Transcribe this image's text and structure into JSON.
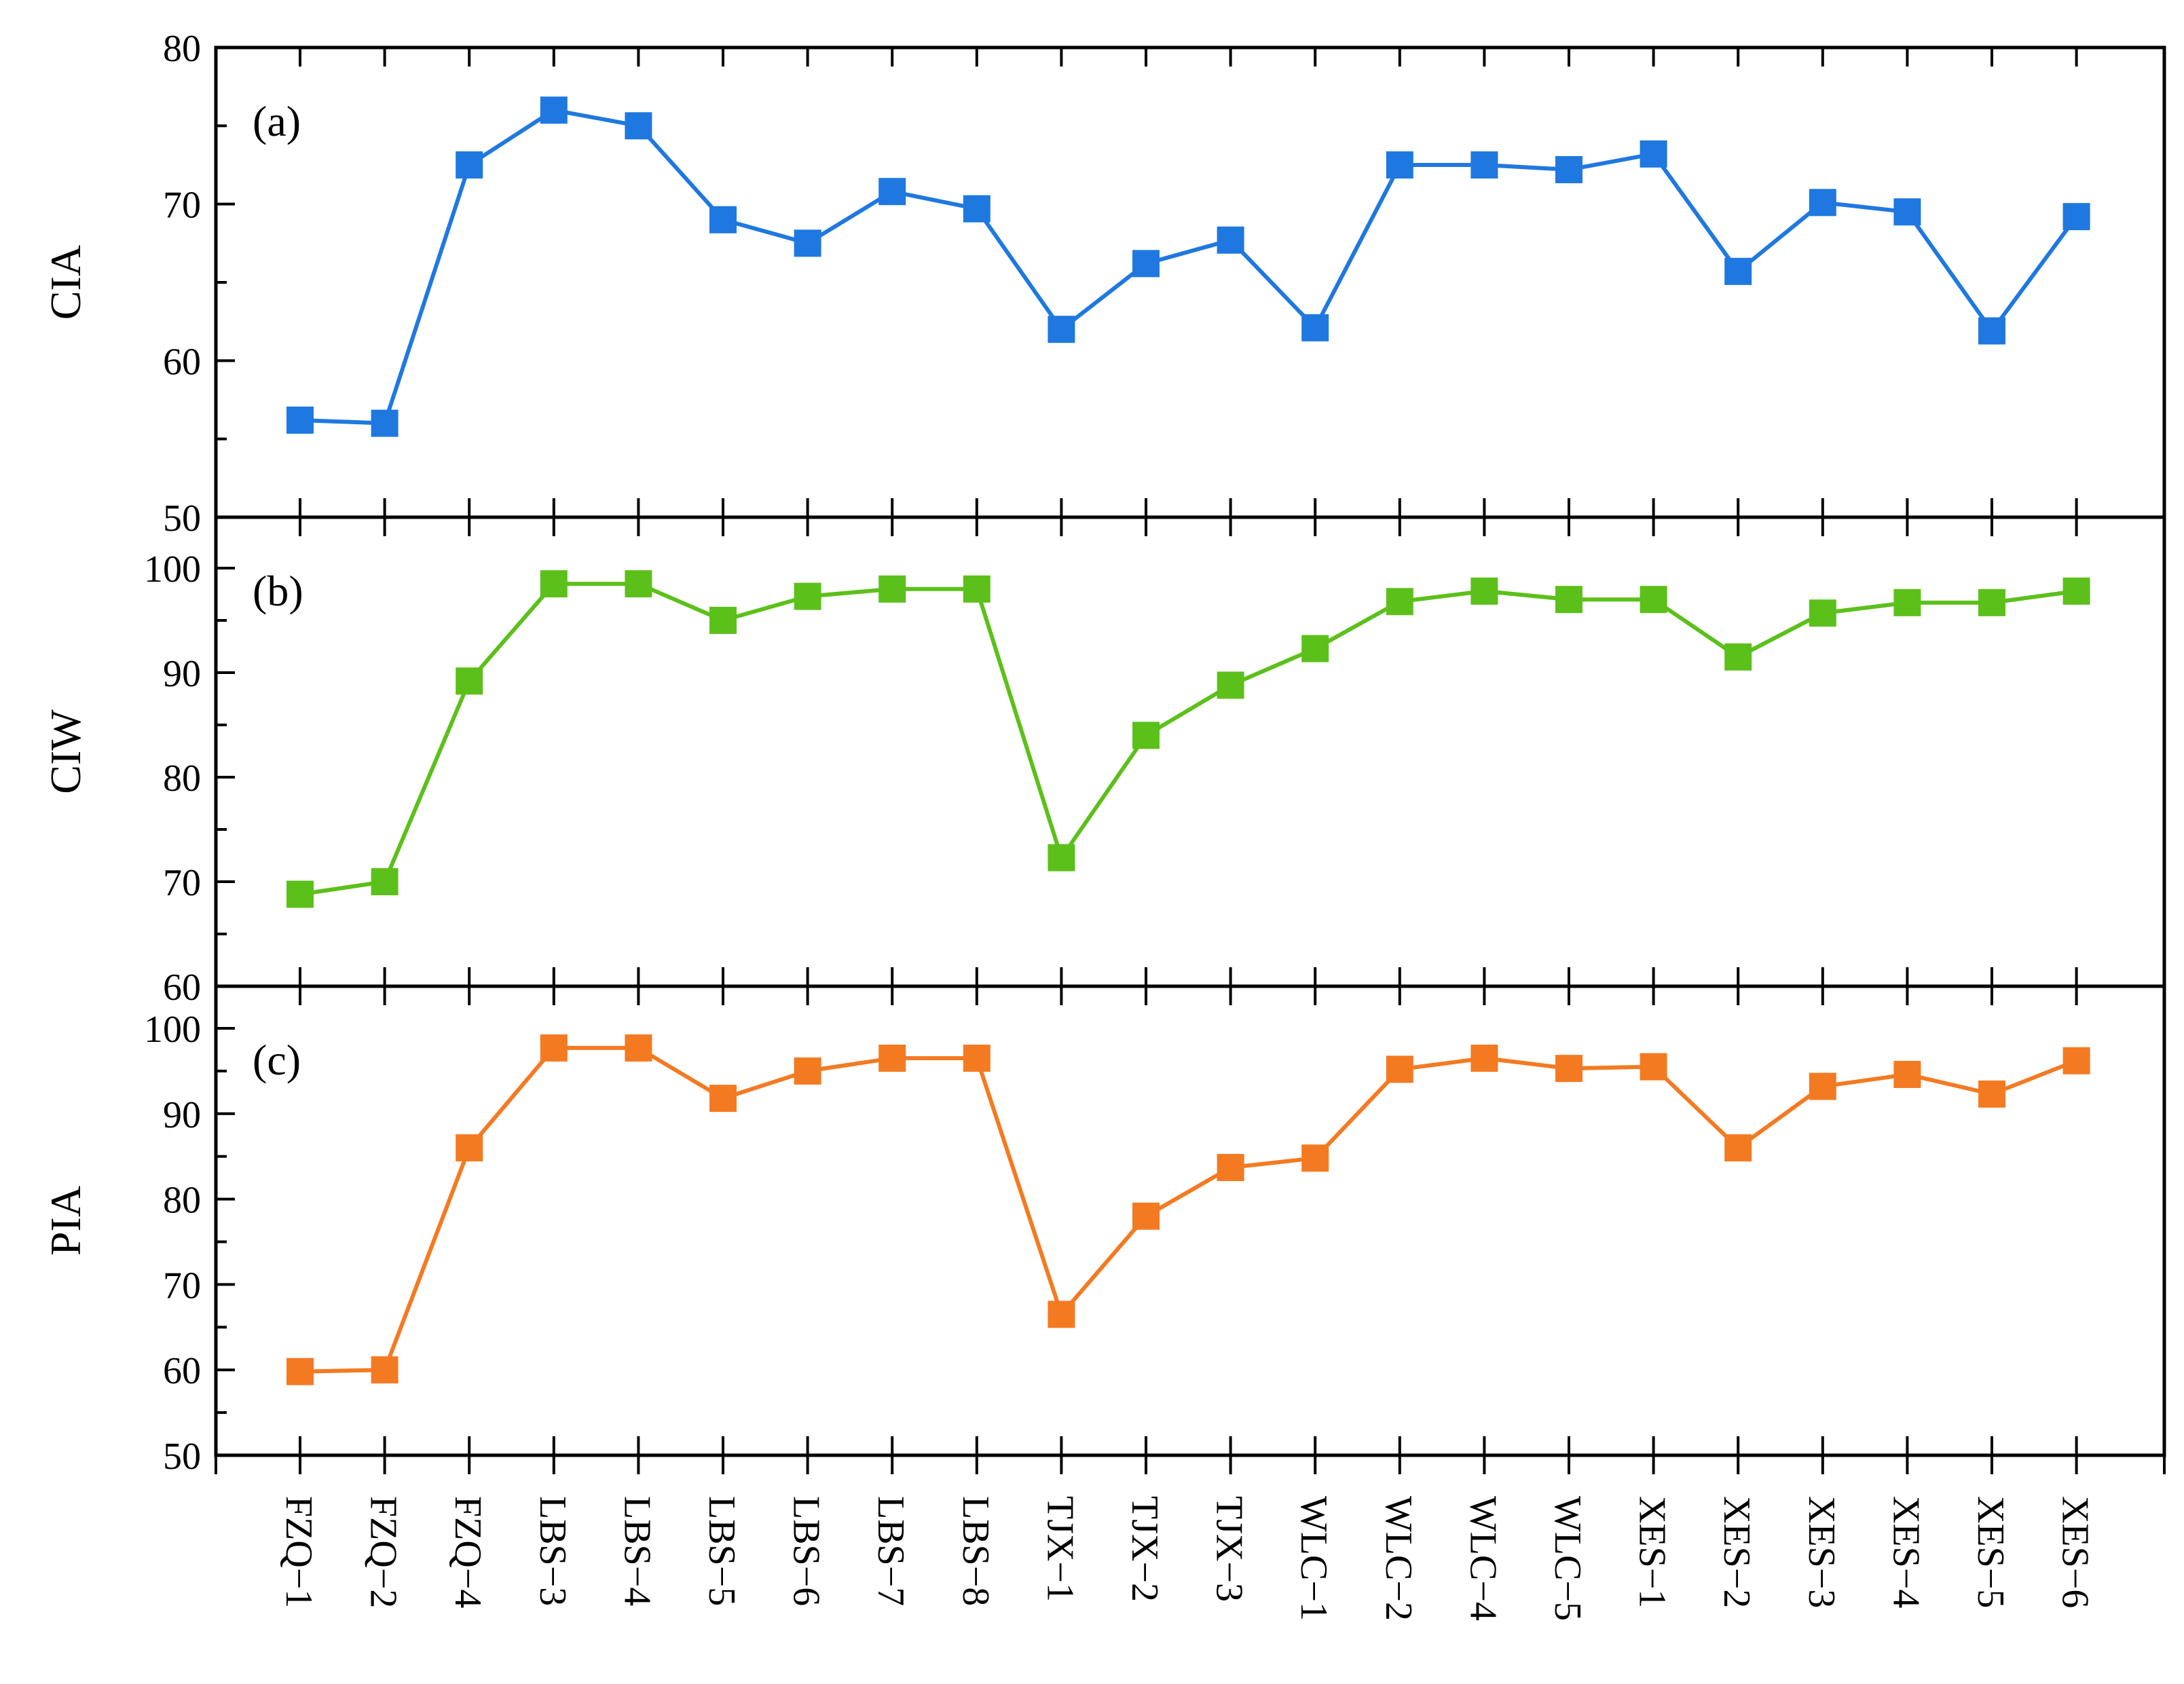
{
  "chart_data": {
    "type": "line",
    "categories": [
      "FZQ−1",
      "FZQ−2",
      "FZQ−4",
      "LBS−3",
      "LBS−4",
      "LBS−5",
      "LBS−6",
      "LBS−7",
      "LBS−8",
      "TJX−1",
      "TJX−2",
      "TJX−3",
      "WLC−1",
      "WLC−2",
      "WLC−4",
      "WLC−5",
      "XES−1",
      "XES−2",
      "XES−3",
      "XES−4",
      "XES−5",
      "XES−6"
    ],
    "panels": [
      {
        "label": "(a)",
        "ylabel": "CIA",
        "ylim": [
          50,
          80
        ],
        "major_ticks": [
          50,
          60,
          70,
          80
        ],
        "minor_step": 5,
        "color": "#1f78e0",
        "values": [
          56.2,
          56.0,
          72.5,
          76.0,
          75.0,
          69.0,
          67.5,
          70.8,
          69.7,
          62.0,
          66.2,
          67.7,
          62.1,
          72.5,
          72.5,
          72.2,
          73.2,
          65.7,
          70.1,
          69.5,
          61.9,
          69.2
        ]
      },
      {
        "label": "(b)",
        "ylabel": "CIW",
        "ylim": [
          60,
          100
        ],
        "major_ticks": [
          60,
          70,
          80,
          90,
          100
        ],
        "minor_step": 5,
        "color": "#5cc01a",
        "values": [
          68.8,
          70.0,
          89.2,
          98.5,
          98.5,
          95.0,
          97.3,
          98.0,
          98.0,
          72.3,
          84.0,
          88.8,
          92.3,
          96.8,
          97.8,
          97.0,
          97.0,
          91.5,
          95.7,
          96.7,
          96.7,
          97.8
        ]
      },
      {
        "label": "(c)",
        "ylabel": "PIA",
        "ylim": [
          50,
          100
        ],
        "major_ticks": [
          50,
          60,
          70,
          80,
          90,
          100
        ],
        "minor_step": 5,
        "color": "#f47a22",
        "values": [
          59.8,
          60.0,
          86.0,
          97.7,
          97.7,
          91.8,
          95.0,
          96.5,
          96.5,
          66.5,
          78.0,
          83.7,
          84.8,
          95.2,
          96.5,
          95.3,
          95.5,
          86.0,
          93.2,
          94.6,
          92.3,
          96.2
        ]
      }
    ]
  }
}
